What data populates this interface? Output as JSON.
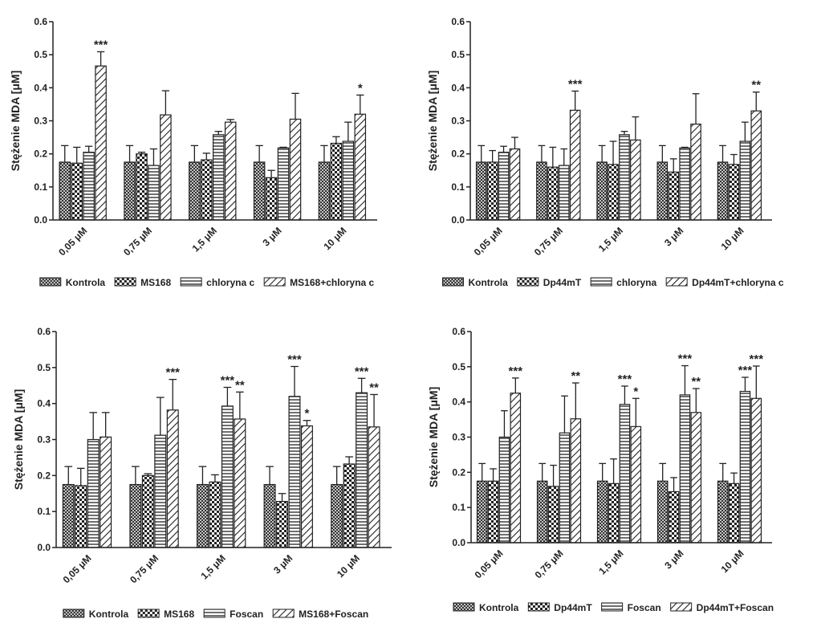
{
  "chart_data": [
    {
      "type": "bar",
      "y_label": "Stężenie MDA [μM]",
      "categories": [
        "0,05 μM",
        "0,75 μM",
        "1,5 μM",
        "3 μM",
        "10 μM"
      ],
      "ylim": [
        0,
        0.6
      ],
      "yticks": [
        {
          "value": 0,
          "label": "0.0"
        },
        0.1,
        0.2,
        0.3,
        0.4,
        0.5,
        0.6
      ],
      "series": [
        {
          "name": "Kontrola",
          "color": "#222222",
          "pattern": "crosshatch",
          "values": [
            0.175,
            0.175,
            0.175,
            0.175,
            0.175
          ],
          "errors": [
            0.05,
            0.05,
            0.05,
            0.05,
            0.05
          ],
          "significance": [
            null,
            null,
            null,
            null,
            null
          ]
        },
        {
          "name": "MS168",
          "color": "#222222",
          "pattern": "checker",
          "values": [
            0.172,
            0.2,
            0.182,
            0.128,
            0.232
          ],
          "errors": [
            0.048,
            0.005,
            0.02,
            0.022,
            0.02
          ],
          "significance": [
            null,
            null,
            null,
            null,
            null
          ]
        },
        {
          "name": "chloryna c",
          "color": "#222222",
          "pattern": "horizontal",
          "values": [
            0.205,
            0.165,
            0.258,
            0.218,
            0.238
          ],
          "errors": [
            0.018,
            0.05,
            0.01,
            0.002,
            0.058
          ],
          "significance": [
            null,
            null,
            null,
            null,
            null
          ]
        },
        {
          "name": "MS168+chloryna c",
          "color": "#222222",
          "pattern": "diagonal",
          "values": [
            0.466,
            0.318,
            0.296,
            0.305,
            0.32
          ],
          "errors": [
            0.043,
            0.073,
            0.008,
            0.078,
            0.058
          ],
          "significance": [
            "***",
            null,
            null,
            null,
            "*"
          ]
        }
      ]
    },
    {
      "type": "bar",
      "y_label": "Stężenie MDA [μM]",
      "categories": [
        "0,05 μM",
        "0,75 μM",
        "1,5 μM",
        "3 μM",
        "10 μM"
      ],
      "ylim": [
        0,
        0.6
      ],
      "yticks": [
        {
          "value": 0,
          "label": "0.0"
        },
        0.1,
        0.2,
        0.3,
        0.4,
        0.5,
        0.6
      ],
      "series": [
        {
          "name": "Kontrola",
          "color": "#222222",
          "pattern": "crosshatch",
          "values": [
            0.175,
            0.175,
            0.175,
            0.175,
            0.175
          ],
          "errors": [
            0.05,
            0.05,
            0.05,
            0.05,
            0.05
          ],
          "significance": [
            null,
            null,
            null,
            null,
            null
          ]
        },
        {
          "name": "Dp44mT",
          "color": "#222222",
          "pattern": "checker",
          "values": [
            0.175,
            0.16,
            0.168,
            0.145,
            0.168
          ],
          "errors": [
            0.035,
            0.06,
            0.07,
            0.04,
            0.03
          ],
          "significance": [
            null,
            null,
            null,
            null,
            null
          ]
        },
        {
          "name": "chloryna",
          "color": "#222222",
          "pattern": "horizontal",
          "values": [
            0.205,
            0.165,
            0.258,
            0.218,
            0.238
          ],
          "errors": [
            0.018,
            0.05,
            0.01,
            0.002,
            0.058
          ],
          "significance": [
            null,
            null,
            null,
            null,
            null
          ]
        },
        {
          "name": "Dp44mT+chloryna c",
          "color": "#222222",
          "pattern": "diagonal",
          "values": [
            0.215,
            0.332,
            0.242,
            0.29,
            0.33
          ],
          "errors": [
            0.035,
            0.058,
            0.07,
            0.092,
            0.057
          ],
          "significance": [
            null,
            "***",
            null,
            null,
            "**"
          ]
        }
      ]
    },
    {
      "type": "bar",
      "y_label": "Stężenie MDA [μM]",
      "categories": [
        "0,05 μM",
        "0,75 μM",
        "1,5 μM",
        "3 μM",
        "10 μM"
      ],
      "ylim": [
        0,
        0.6
      ],
      "yticks": [
        {
          "value": 0,
          "label": "0.0"
        },
        0.1,
        0.2,
        0.3,
        0.4,
        0.5,
        0.6
      ],
      "series": [
        {
          "name": "Kontrola",
          "color": "#222222",
          "pattern": "crosshatch",
          "values": [
            0.175,
            0.175,
            0.175,
            0.175,
            0.175
          ],
          "errors": [
            0.05,
            0.05,
            0.05,
            0.05,
            0.05
          ],
          "significance": [
            null,
            null,
            null,
            null,
            null
          ]
        },
        {
          "name": "MS168",
          "color": "#222222",
          "pattern": "checker",
          "values": [
            0.172,
            0.2,
            0.182,
            0.128,
            0.232
          ],
          "errors": [
            0.048,
            0.005,
            0.02,
            0.022,
            0.02
          ],
          "significance": [
            null,
            null,
            null,
            null,
            null
          ]
        },
        {
          "name": "Foscan",
          "color": "#222222",
          "pattern": "horizontal",
          "values": [
            0.3,
            0.312,
            0.393,
            0.42,
            0.43
          ],
          "errors": [
            0.075,
            0.105,
            0.052,
            0.083,
            0.04
          ],
          "significance": [
            null,
            null,
            "***",
            "***",
            "***"
          ]
        },
        {
          "name": "MS168+Foscan",
          "color": "#222222",
          "pattern": "diagonal",
          "values": [
            0.307,
            0.382,
            0.357,
            0.338,
            0.335
          ],
          "errors": [
            0.068,
            0.085,
            0.075,
            0.015,
            0.09
          ],
          "significance": [
            null,
            "***",
            "**",
            "*",
            "**"
          ]
        }
      ]
    },
    {
      "type": "bar",
      "y_label": "Stężenie MDA [μM]",
      "categories": [
        "0,05 μM",
        "0,75 μM",
        "1,5 μM",
        "3 μM",
        "10 μM"
      ],
      "ylim": [
        0,
        0.6
      ],
      "yticks": [
        {
          "value": 0,
          "label": "0.0"
        },
        0.1,
        0.2,
        0.3,
        0.4,
        0.5,
        0.6
      ],
      "series": [
        {
          "name": "Kontrola",
          "color": "#222222",
          "pattern": "crosshatch",
          "values": [
            0.175,
            0.175,
            0.175,
            0.175,
            0.175
          ],
          "errors": [
            0.05,
            0.05,
            0.05,
            0.05,
            0.05
          ],
          "significance": [
            null,
            null,
            null,
            null,
            null
          ]
        },
        {
          "name": "Dp44mT",
          "color": "#222222",
          "pattern": "checker",
          "values": [
            0.175,
            0.16,
            0.168,
            0.145,
            0.168
          ],
          "errors": [
            0.035,
            0.06,
            0.07,
            0.04,
            0.03
          ],
          "significance": [
            null,
            null,
            null,
            null,
            null
          ]
        },
        {
          "name": "Foscan",
          "color": "#222222",
          "pattern": "horizontal",
          "values": [
            0.3,
            0.312,
            0.393,
            0.42,
            0.43
          ],
          "errors": [
            0.075,
            0.105,
            0.052,
            0.083,
            0.04
          ],
          "significance": [
            null,
            null,
            "***",
            "***",
            "***"
          ]
        },
        {
          "name": "Dp44mT+Foscan",
          "color": "#222222",
          "pattern": "diagonal",
          "values": [
            0.425,
            0.352,
            0.33,
            0.37,
            0.41
          ],
          "errors": [
            0.043,
            0.102,
            0.08,
            0.068,
            0.092
          ],
          "significance": [
            "***",
            "**",
            "*",
            "**",
            "***"
          ]
        }
      ]
    }
  ]
}
